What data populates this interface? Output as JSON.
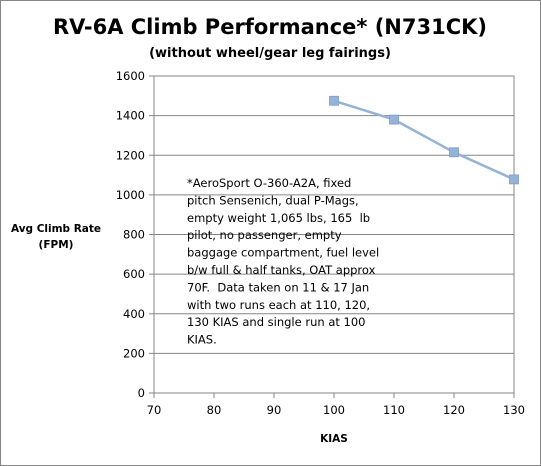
{
  "chart_data": {
    "type": "line",
    "title": "RV-6A Climb Performance* (N731CK)",
    "subtitle": "(without wheel/gear leg fairings)",
    "xlabel": "KIAS",
    "ylabel_lines": [
      "Avg Climb Rate",
      "(FPM)"
    ],
    "xlim": [
      70,
      130
    ],
    "ylim": [
      0,
      1600
    ],
    "x_ticks": [
      "70",
      "80",
      "90",
      "100",
      "110",
      "120",
      "130"
    ],
    "y_ticks": [
      "0",
      "200",
      "400",
      "600",
      "800",
      "1000",
      "1200",
      "1400",
      "1600"
    ],
    "grid": "horizontal",
    "series": [
      {
        "x": [
          100,
          110,
          120,
          130
        ],
        "y": [
          1475,
          1380,
          1215,
          1078
        ],
        "color": "#95B3D7",
        "marker": "square"
      }
    ],
    "annotation_lines": [
      "*AeroSport O-360-A2A, fixed",
      "pitch Sensenich, dual P-Mags,",
      "empty weight 1,065 lbs, 165  lb",
      "pilot, no passenger, empty",
      "baggage compartment, fuel level",
      "b/w full & half tanks, OAT approx",
      "70F.  Data taken on 11 & 17 Jan",
      "with two runs each at 110, 120,",
      "130 KIAS and single run at 100",
      "KIAS."
    ]
  }
}
